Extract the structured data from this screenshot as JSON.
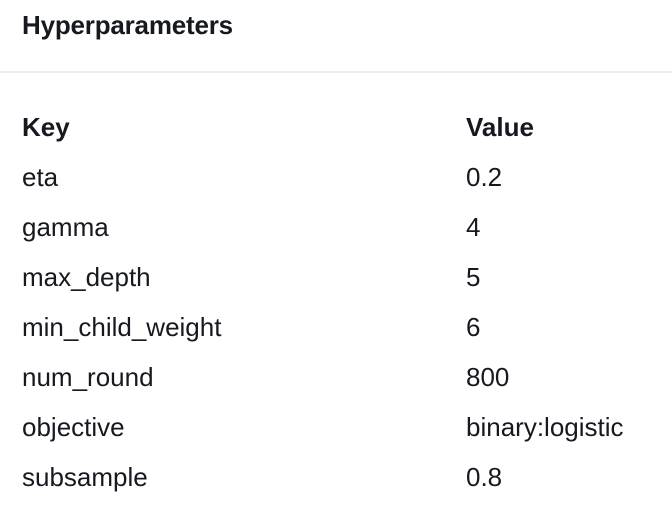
{
  "panel": {
    "title": "Hyperparameters"
  },
  "table": {
    "headers": {
      "key": "Key",
      "value": "Value"
    },
    "rows": [
      {
        "key": "eta",
        "value": "0.2"
      },
      {
        "key": "gamma",
        "value": "4"
      },
      {
        "key": "max_depth",
        "value": "5"
      },
      {
        "key": "min_child_weight",
        "value": "6"
      },
      {
        "key": "num_round",
        "value": "800"
      },
      {
        "key": "objective",
        "value": "binary:logistic"
      },
      {
        "key": "subsample",
        "value": "0.8"
      }
    ]
  },
  "colors": {
    "text": "#16191f",
    "divider": "#eaeded",
    "background": "#ffffff"
  }
}
